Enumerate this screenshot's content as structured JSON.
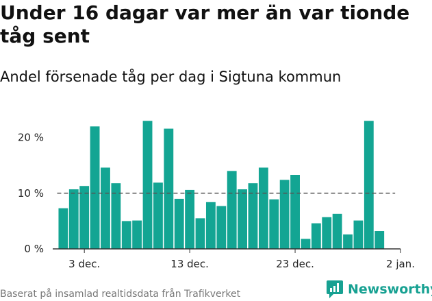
{
  "header": {
    "title": "Under 16 dagar var mer än var tionde tåg sent",
    "subtitle": "Andel försenade tåg per dag i Sigtuna kommun"
  },
  "footer": {
    "source": "Baserat på insamlad realtidsdata från Trafikverket",
    "brand": "Newsworthy",
    "brand_icon": "newsworthy-logo-icon"
  },
  "colors": {
    "bar": "#13a593",
    "reference_line": "#555555",
    "axis": "#333333",
    "brand": "#17a192"
  },
  "chart_data": {
    "type": "bar",
    "x": [
      "2023-12-01",
      "2023-12-02",
      "2023-12-03",
      "2023-12-04",
      "2023-12-05",
      "2023-12-06",
      "2023-12-07",
      "2023-12-08",
      "2023-12-09",
      "2023-12-10",
      "2023-12-11",
      "2023-12-12",
      "2023-12-13",
      "2023-12-14",
      "2023-12-15",
      "2023-12-16",
      "2023-12-17",
      "2023-12-18",
      "2023-12-19",
      "2023-12-20",
      "2023-12-21",
      "2023-12-22",
      "2023-12-23",
      "2023-12-24",
      "2023-12-25",
      "2023-12-26",
      "2023-12-27",
      "2023-12-28",
      "2023-12-29",
      "2023-12-30",
      "2023-12-31"
    ],
    "values": [
      7.3,
      10.7,
      11.3,
      22.0,
      14.6,
      11.8,
      5.0,
      5.1,
      23.0,
      11.9,
      21.6,
      9.0,
      10.6,
      5.5,
      8.4,
      7.7,
      14.0,
      10.7,
      11.8,
      14.6,
      8.9,
      12.4,
      13.3,
      1.8,
      4.6,
      5.7,
      6.3,
      2.6,
      5.1,
      23.0,
      3.2
    ],
    "y_unit": "%",
    "ylim": [
      0,
      25
    ],
    "y_ticks": [
      {
        "value": 0,
        "label": "0 %"
      },
      {
        "value": 10,
        "label": "10 %"
      },
      {
        "value": 20,
        "label": "20 %"
      }
    ],
    "x_ticks": [
      {
        "date": "2023-12-03",
        "label": "3 dec."
      },
      {
        "date": "2023-12-13",
        "label": "13 dec."
      },
      {
        "date": "2023-12-23",
        "label": "23 dec."
      },
      {
        "date": "2024-01-02",
        "label": "2 jan."
      }
    ],
    "x_range": [
      "2023-11-30",
      "2024-01-02"
    ],
    "reference_line": {
      "value": 10,
      "style": "dashed"
    },
    "grid": false,
    "legend": "none"
  }
}
